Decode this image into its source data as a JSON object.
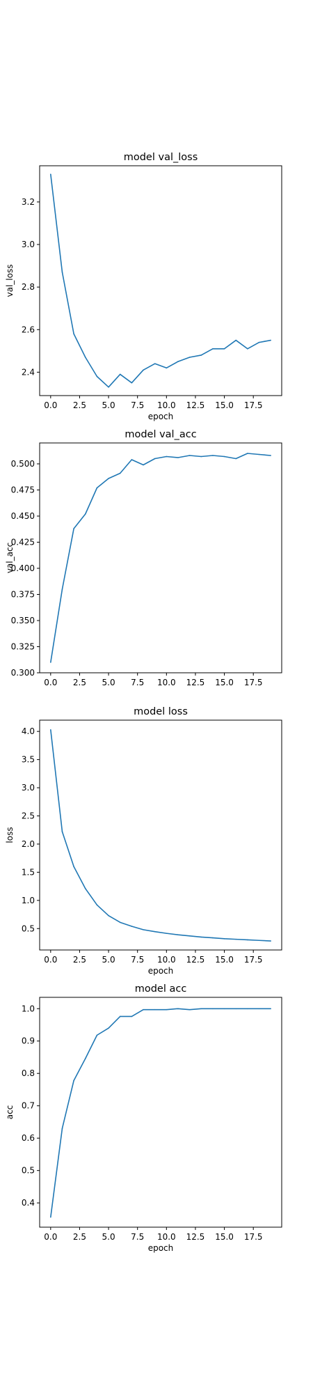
{
  "chart_data": [
    {
      "type": "line",
      "title": "model val_loss",
      "xlabel": "epoch",
      "ylabel": "val_loss",
      "xlim": [
        -0.95,
        19.95
      ],
      "ylim": [
        2.29,
        3.37
      ],
      "xticks": [
        "0.0",
        "2.5",
        "5.0",
        "7.5",
        "10.0",
        "12.5",
        "15.0",
        "17.5"
      ],
      "yticks": [
        "2.4",
        "2.6",
        "2.8",
        "3.0",
        "3.2"
      ],
      "grid": false,
      "color": "#1f77b4",
      "series": [
        {
          "x": [
            0,
            1,
            2,
            3,
            4,
            5,
            6,
            7,
            8,
            9,
            10,
            11,
            12,
            13,
            14,
            15,
            16,
            17,
            18,
            19
          ],
          "values": [
            3.33,
            2.87,
            2.58,
            2.47,
            2.38,
            2.33,
            2.39,
            2.35,
            2.41,
            2.44,
            2.42,
            2.45,
            2.47,
            2.48,
            2.51,
            2.51,
            2.55,
            2.51,
            2.54,
            2.55
          ]
        }
      ]
    },
    {
      "type": "line",
      "title": "model val_acc",
      "xlabel": "",
      "ylabel": "val_acc",
      "xlim": [
        -0.95,
        19.95
      ],
      "ylim": [
        0.3,
        0.52
      ],
      "xticks": [
        "0.0",
        "2.5",
        "5.0",
        "7.5",
        "10.0",
        "12.5",
        "15.0",
        "17.5"
      ],
      "yticks": [
        "0.300",
        "0.325",
        "0.350",
        "0.375",
        "0.400",
        "0.425",
        "0.450",
        "0.475",
        "0.500"
      ],
      "grid": false,
      "color": "#1f77b4",
      "series": [
        {
          "x": [
            0,
            1,
            2,
            3,
            4,
            5,
            6,
            7,
            8,
            9,
            10,
            11,
            12,
            13,
            14,
            15,
            16,
            17,
            18,
            19
          ],
          "values": [
            0.31,
            0.38,
            0.438,
            0.452,
            0.477,
            0.486,
            0.491,
            0.504,
            0.499,
            0.505,
            0.507,
            0.506,
            0.508,
            0.507,
            0.508,
            0.507,
            0.505,
            0.51,
            0.509,
            0.508
          ]
        }
      ]
    },
    {
      "type": "line",
      "title": "model loss",
      "xlabel": "epoch",
      "ylabel": "loss",
      "xlim": [
        -0.95,
        19.95
      ],
      "ylim": [
        0.12,
        4.2
      ],
      "xticks": [
        "0.0",
        "2.5",
        "5.0",
        "7.5",
        "10.0",
        "12.5",
        "15.0",
        "17.5"
      ],
      "yticks": [
        "0.5",
        "1.0",
        "1.5",
        "2.0",
        "2.5",
        "3.0",
        "3.5",
        "4.0"
      ],
      "grid": false,
      "color": "#1f77b4",
      "series": [
        {
          "x": [
            0,
            1,
            2,
            3,
            4,
            5,
            6,
            7,
            8,
            9,
            10,
            11,
            12,
            13,
            14,
            15,
            16,
            17,
            18,
            19
          ],
          "values": [
            4.03,
            2.22,
            1.6,
            1.21,
            0.92,
            0.73,
            0.61,
            0.54,
            0.48,
            0.445,
            0.415,
            0.39,
            0.37,
            0.35,
            0.335,
            0.32,
            0.31,
            0.3,
            0.29,
            0.28
          ]
        }
      ]
    },
    {
      "type": "line",
      "title": "model acc",
      "xlabel": "epoch",
      "ylabel": "acc",
      "xlim": [
        -0.95,
        19.95
      ],
      "ylim": [
        0.325,
        1.035
      ],
      "xticks": [
        "0.0",
        "2.5",
        "5.0",
        "7.5",
        "10.0",
        "12.5",
        "15.0",
        "17.5"
      ],
      "yticks": [
        "0.4",
        "0.5",
        "0.6",
        "0.7",
        "0.8",
        "0.9",
        "1.0"
      ],
      "grid": false,
      "color": "#1f77b4",
      "series": [
        {
          "x": [
            0,
            1,
            2,
            3,
            4,
            5,
            6,
            7,
            8,
            9,
            10,
            11,
            12,
            13,
            14,
            15,
            16,
            17,
            18,
            19
          ],
          "values": [
            0.356,
            0.63,
            0.778,
            0.846,
            0.918,
            0.94,
            0.976,
            0.976,
            0.997,
            0.997,
            0.997,
            1.0,
            0.997,
            1.0,
            1.0,
            1.0,
            1.0,
            1.0,
            1.0,
            1.0
          ]
        }
      ]
    }
  ]
}
